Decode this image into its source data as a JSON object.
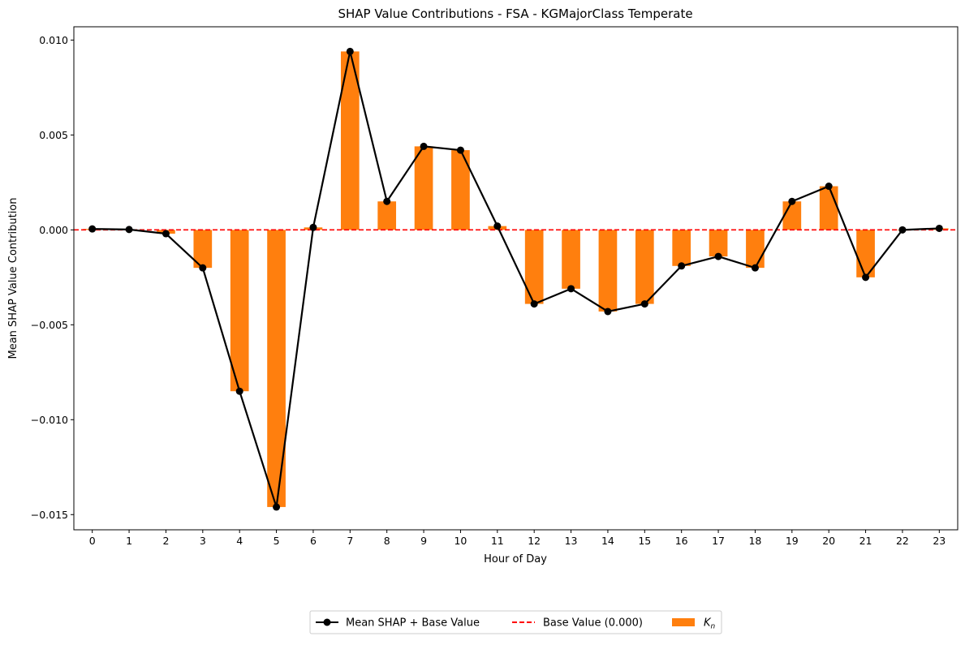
{
  "chart_data": {
    "type": "bar",
    "title": "SHAP Value Contributions - FSA - KGMajorClass Temperate",
    "xlabel": "Hour of Day",
    "ylabel": "Mean SHAP Value Contribution",
    "x": [
      0,
      1,
      2,
      3,
      4,
      5,
      6,
      7,
      8,
      9,
      10,
      11,
      12,
      13,
      14,
      15,
      16,
      17,
      18,
      19,
      20,
      21,
      22,
      23
    ],
    "x_tick_labels": [
      "0",
      "1",
      "2",
      "3",
      "4",
      "5",
      "6",
      "7",
      "8",
      "9",
      "10",
      "11",
      "12",
      "13",
      "14",
      "15",
      "16",
      "17",
      "18",
      "19",
      "20",
      "21",
      "22",
      "23"
    ],
    "ylim": [
      -0.0158,
      0.0107
    ],
    "y_ticks": [
      0.01,
      0.005,
      0.0,
      -0.005,
      -0.01,
      -0.015
    ],
    "y_tick_labels": [
      "0.010",
      "0.005",
      "0.000",
      "−0.005",
      "−0.010",
      "−0.015"
    ],
    "grid": false,
    "series": [
      {
        "name": "K_n",
        "kind": "bar",
        "color": "#ff7f0e",
        "values": [
          5e-05,
          2e-05,
          -0.0002,
          -0.002,
          -0.0085,
          -0.0146,
          0.00013,
          0.0094,
          0.0015,
          0.0044,
          0.0042,
          0.0002,
          -0.0039,
          -0.0031,
          -0.0043,
          -0.0039,
          -0.0019,
          -0.0014,
          -0.002,
          0.0015,
          0.0023,
          -0.0025,
          0.0,
          8e-05
        ]
      },
      {
        "name": "Mean SHAP + Base Value",
        "kind": "line",
        "color": "#000000",
        "marker": "circle",
        "values": [
          5e-05,
          2e-05,
          -0.0002,
          -0.002,
          -0.0085,
          -0.0146,
          0.00013,
          0.0094,
          0.0015,
          0.0044,
          0.0042,
          0.0002,
          -0.0039,
          -0.0031,
          -0.0043,
          -0.0039,
          -0.0019,
          -0.0014,
          -0.002,
          0.0015,
          0.0023,
          -0.0025,
          0.0,
          8e-05
        ]
      }
    ],
    "reference_line": {
      "name": "Base Value (0.000)",
      "value": 0.0,
      "color": "#ff0000",
      "style": "dashed"
    },
    "legend": {
      "placement": "bottom-center",
      "entries": [
        {
          "label": "Mean SHAP + Base Value",
          "kind": "line-marker",
          "color": "#000000"
        },
        {
          "label": "Base Value (0.000)",
          "kind": "dashed-line",
          "color": "#ff0000"
        },
        {
          "label": "K",
          "sub": "n",
          "kind": "bar",
          "color": "#ff7f0e"
        }
      ]
    }
  }
}
